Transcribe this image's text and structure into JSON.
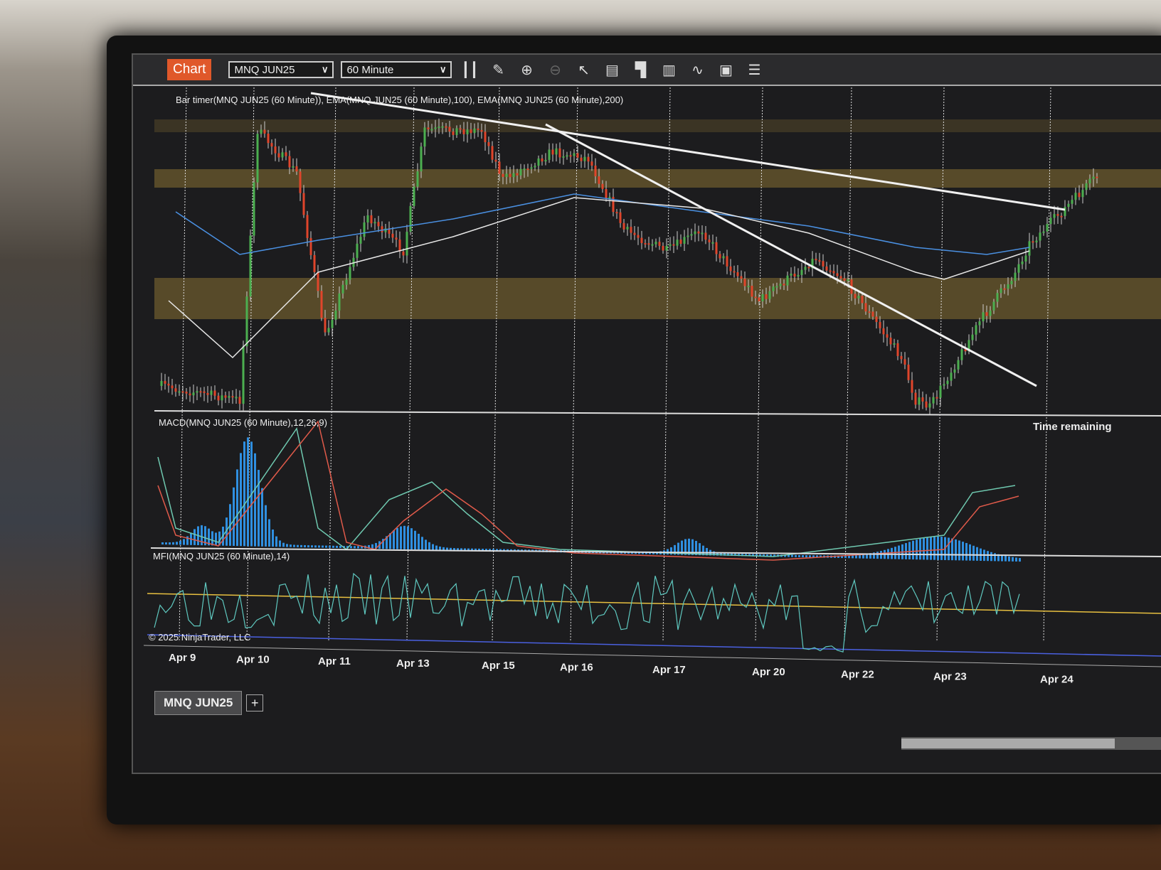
{
  "toolbar": {
    "chart_label": "Chart",
    "instrument": "MNQ JUN25",
    "interval": "60 Minute",
    "tools": [
      "bar-type-icon",
      "pencil-icon",
      "zoom-in-icon",
      "zoom-out-icon",
      "pointer-icon",
      "data-box-icon",
      "properties-icon",
      "indicators-icon",
      "strategies-icon",
      "templates-icon",
      "menu-list-icon"
    ]
  },
  "panels": {
    "price_label": "Bar timer(MNQ JUN25 (60 Minute)), EMA(MNQ JUN25 (60 Minute),100), EMA(MNQ JUN25 (60 Minute),200)",
    "macd_label": "MACD(MNQ JUN25 (60 Minute),12,26,9)",
    "mfi_label": "MFI(MNQ JUN25 (60 Minute),14)",
    "time_remaining": "Time remaining",
    "copyright": "© 2025 NinjaTrader, LLC"
  },
  "axis": {
    "dates": [
      "Apr 9",
      "Apr 10",
      "Apr 11",
      "Apr 13",
      "Apr 15",
      "Apr 16",
      "Apr 17",
      "Apr 20",
      "Apr 22",
      "Apr 23",
      "Apr 24"
    ]
  },
  "tabs": {
    "active": "MNQ JUN25",
    "add": "+"
  },
  "colors": {
    "up": "#4caf50",
    "down": "#e0452b",
    "band": "#6b5a2e",
    "ema100": "#4a90e2",
    "ema200": "#e8e8e8",
    "macd": "#6fc9b0",
    "signal": "#e05a4a",
    "hist": "#2f8fe0",
    "mfi": "#5fc9c0",
    "mfi_upper": "#e8c040",
    "mfi_lower": "#4a60e0",
    "accent": "#e0582a"
  }
}
